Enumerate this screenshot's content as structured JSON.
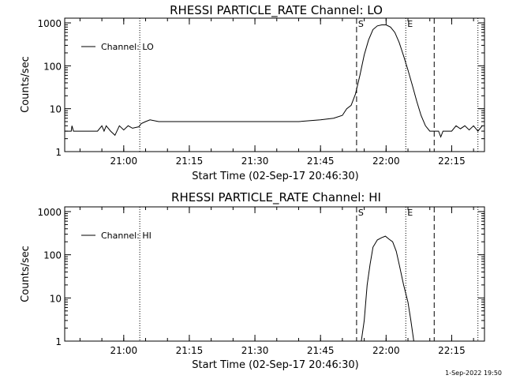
{
  "footer_timestamp": "1-Sep-2022 19:50",
  "chart_data": [
    {
      "type": "line",
      "title": "RHESSI PARTICLE_RATE Channel: LO",
      "xlabel": "Start Time (02-Sep-17 20:46:30)",
      "ylabel": "Counts/sec",
      "yscale": "log",
      "xlim": [
        "20:46:30",
        "22:22:30"
      ],
      "ylim": [
        1,
        1000
      ],
      "xticks": [
        "21:00",
        "21:15",
        "21:30",
        "21:45",
        "22:00",
        "22:15"
      ],
      "yticks": [
        "1",
        "10",
        "100",
        "1000"
      ],
      "legend": {
        "placement": "top-left",
        "entries": [
          "Channel: LO"
        ]
      },
      "grid": false,
      "markers": [
        {
          "time": "21:03:40",
          "style": "dotted",
          "label": ""
        },
        {
          "time": "21:53:15",
          "style": "dashed",
          "label": "S"
        },
        {
          "time": "22:04:30",
          "style": "dotted",
          "label": "E"
        },
        {
          "time": "22:11:00",
          "style": "dashed",
          "label": ""
        },
        {
          "time": "22:21:00",
          "style": "dotted",
          "label": ""
        }
      ],
      "series": [
        {
          "name": "Channel: LO",
          "x": [
            "20:46:30",
            "20:48:00",
            "20:48:10",
            "20:48:30",
            "20:50:00",
            "20:54:00",
            "20:55:00",
            "20:55:30",
            "20:56:00",
            "20:57:00",
            "20:58:00",
            "20:59:00",
            "21:00:00",
            "21:01:00",
            "21:02:00",
            "21:03:30",
            "21:04:00",
            "21:05:00",
            "21:06:00",
            "21:08:00",
            "21:10:00",
            "21:15:00",
            "21:20:00",
            "21:25:00",
            "21:30:00",
            "21:35:00",
            "21:40:00",
            "21:45:00",
            "21:48:00",
            "21:50:00",
            "21:51:00",
            "21:52:00",
            "21:53:00",
            "21:54:00",
            "21:55:00",
            "21:56:00",
            "21:57:00",
            "21:58:00",
            "21:59:00",
            "22:00:00",
            "22:01:00",
            "22:02:00",
            "22:03:00",
            "22:04:00",
            "22:05:00",
            "22:06:00",
            "22:07:00",
            "22:08:00",
            "22:09:00",
            "22:10:00",
            "22:12:00",
            "22:12:30",
            "22:13:00",
            "22:14:00",
            "22:15:00",
            "22:16:00",
            "22:17:00",
            "22:18:00",
            "22:19:00",
            "22:20:00",
            "22:21:00",
            "22:22:00"
          ],
          "y": [
            3,
            3,
            4,
            3,
            3,
            3,
            4,
            3,
            4,
            3,
            2.4,
            4,
            3.2,
            4,
            3.5,
            3.8,
            4.5,
            5,
            5.5,
            5,
            5,
            5,
            5,
            5,
            5,
            5,
            5,
            5.5,
            6,
            7,
            10,
            12,
            22,
            60,
            180,
            400,
            700,
            850,
            900,
            900,
            800,
            600,
            350,
            170,
            80,
            35,
            15,
            7,
            4,
            3,
            3,
            2.2,
            3,
            3,
            3,
            4,
            3.4,
            4,
            3.2,
            4,
            3,
            4
          ]
        }
      ]
    },
    {
      "type": "line",
      "title": "RHESSI PARTICLE_RATE Channel: HI",
      "xlabel": "Start Time (02-Sep-17 20:46:30)",
      "ylabel": "Counts/sec",
      "yscale": "log",
      "xlim": [
        "20:46:30",
        "22:22:30"
      ],
      "ylim": [
        1,
        1000
      ],
      "xticks": [
        "21:00",
        "21:15",
        "21:30",
        "21:45",
        "22:00",
        "22:15"
      ],
      "yticks": [
        "1",
        "10",
        "100",
        "1000"
      ],
      "legend": {
        "placement": "top-left",
        "entries": [
          "Channel: HI"
        ]
      },
      "grid": false,
      "markers": [
        {
          "time": "21:03:40",
          "style": "dotted",
          "label": ""
        },
        {
          "time": "21:53:15",
          "style": "dashed",
          "label": "S"
        },
        {
          "time": "22:04:30",
          "style": "dotted",
          "label": "E"
        },
        {
          "time": "22:11:00",
          "style": "dashed",
          "label": ""
        },
        {
          "time": "22:21:00",
          "style": "dotted",
          "label": ""
        }
      ],
      "series": [
        {
          "name": "Channel: HI",
          "x": [
            "21:54:20",
            "21:55:00",
            "21:55:40",
            "21:56:20",
            "21:57:00",
            "21:58:00",
            "21:59:00",
            "21:59:50",
            "22:00:40",
            "22:01:30",
            "22:02:20",
            "22:03:00",
            "22:04:00",
            "22:05:00",
            "22:05:40",
            "22:06:20"
          ],
          "y": [
            1,
            3,
            20,
            60,
            150,
            220,
            250,
            270,
            230,
            200,
            120,
            60,
            20,
            8,
            3,
            1
          ]
        }
      ]
    }
  ]
}
